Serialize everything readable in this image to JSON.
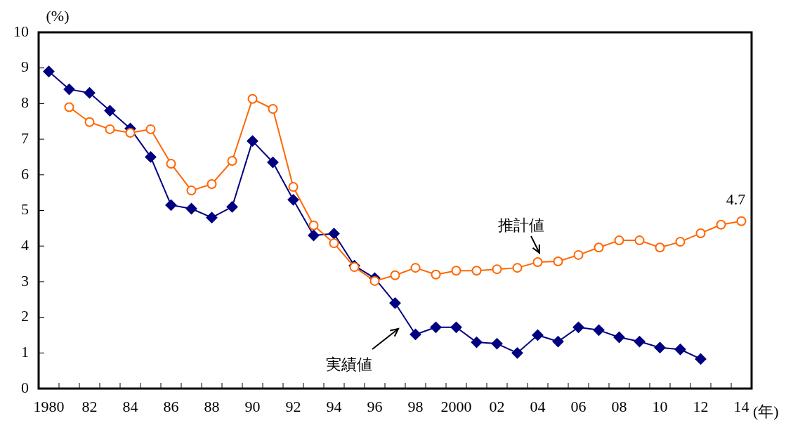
{
  "chart_data": {
    "type": "line",
    "xlabel": "(年)",
    "ylabel": "(%)",
    "categories": [
      "1980",
      null,
      "82",
      null,
      "84",
      null,
      "86",
      null,
      "88",
      null,
      "90",
      null,
      "92",
      null,
      "94",
      null,
      "96",
      null,
      "98",
      null,
      "2000",
      null,
      "02",
      null,
      "04",
      null,
      "06",
      null,
      "08",
      null,
      "10",
      null,
      "12",
      null,
      "14"
    ],
    "series": [
      {
        "name": "実績値",
        "color": "#000080",
        "marker": "diamond",
        "values": [
          8.9,
          8.4,
          8.3,
          7.8,
          7.3,
          6.5,
          5.15,
          5.05,
          4.8,
          5.1,
          6.95,
          6.35,
          5.3,
          4.3,
          4.35,
          3.45,
          3.1,
          2.4,
          1.52,
          1.72,
          1.72,
          1.3,
          1.26,
          1.0,
          1.5,
          1.32,
          1.72,
          1.64,
          1.44,
          1.32,
          1.15,
          1.1,
          0.83,
          null,
          null
        ]
      },
      {
        "name": "推計値",
        "color": "#ff6600",
        "marker": "circle",
        "values": [
          null,
          7.9,
          7.48,
          7.28,
          7.18,
          7.28,
          6.31,
          5.56,
          5.74,
          6.39,
          8.13,
          7.85,
          5.66,
          4.58,
          4.08,
          3.41,
          3.02,
          3.18,
          3.39,
          3.2,
          3.31,
          3.31,
          3.35,
          3.39,
          3.55,
          3.57,
          3.75,
          3.96,
          4.16,
          4.16,
          3.96,
          4.12,
          4.36,
          4.6,
          4.7
        ],
        "value_labels": [
          null,
          null,
          null,
          null,
          null,
          null,
          null,
          null,
          null,
          null,
          null,
          null,
          null,
          null,
          null,
          null,
          null,
          null,
          null,
          null,
          null,
          null,
          null,
          null,
          null,
          null,
          null,
          null,
          null,
          null,
          null,
          null,
          null,
          null,
          "4.7"
        ]
      }
    ],
    "ylim": [
      0,
      10
    ],
    "yticks": [
      0,
      1,
      2,
      3,
      4,
      5,
      6,
      7,
      8,
      9,
      10
    ],
    "grid": false,
    "legend": false,
    "line_style": "solid"
  }
}
